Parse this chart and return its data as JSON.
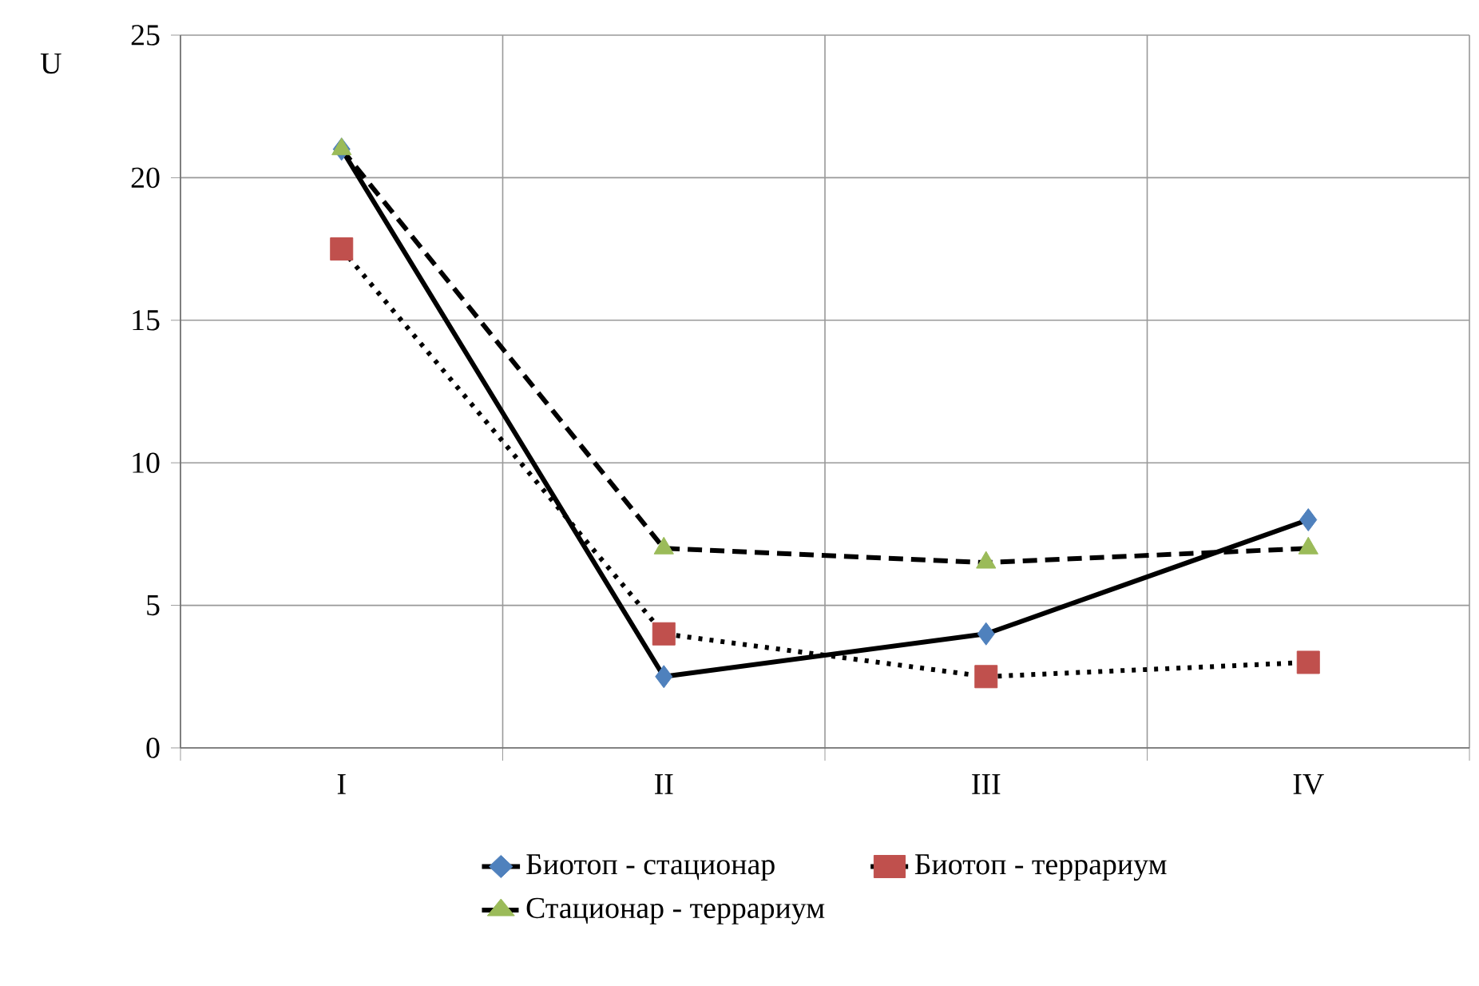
{
  "chart_data": {
    "type": "line",
    "ylabel": "U",
    "categories": [
      "I",
      "II",
      "III",
      "IV"
    ],
    "series": [
      {
        "name": "Биотоп - стационар",
        "color": "#4f81bd",
        "marker": "diamond",
        "line_style": "solid",
        "values": [
          21,
          2.5,
          4,
          8
        ]
      },
      {
        "name": "Биотоп - террариум",
        "color": "#c0504d",
        "marker": "square",
        "line_style": "dotted",
        "values": [
          17.5,
          4,
          2.5,
          3
        ]
      },
      {
        "name": "Стационар - террариум",
        "color": "#9bbb59",
        "marker": "triangle",
        "line_style": "dashed",
        "values": [
          21,
          7,
          6.5,
          7
        ]
      }
    ],
    "ylim": [
      0,
      25
    ],
    "yticks": [
      0,
      5,
      10,
      15,
      20,
      25
    ],
    "grid": true,
    "legend": "bottom"
  }
}
